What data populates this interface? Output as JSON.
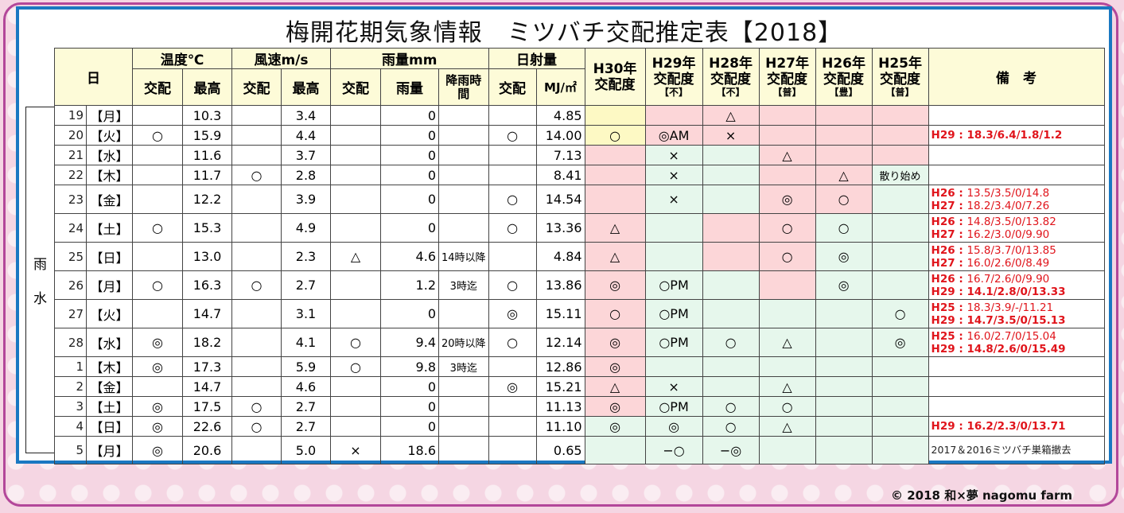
{
  "title": "梅開花期気象情報　ミツバチ交配推定表【2018】",
  "footer": "© 2018  和×夢 nagomu  farm",
  "side_label": [
    "雨",
    "水"
  ],
  "header": {
    "day": "日",
    "temp": "温度℃",
    "wind": "風速m/s",
    "rain": "雨量mm",
    "sun": "日射量",
    "mating": "交配",
    "max": "最高",
    "rain_amount": "雨量",
    "rain_time": "降雨時間",
    "mj": "MJ/㎡",
    "years": [
      {
        "label": "H30年",
        "sub": "交配度",
        "note": ""
      },
      {
        "label": "H29年",
        "sub": "交配度",
        "note": "【不】"
      },
      {
        "label": "H28年",
        "sub": "交配度",
        "note": "【不】"
      },
      {
        "label": "H27年",
        "sub": "交配度",
        "note": "【普】"
      },
      {
        "label": "H26年",
        "sub": "交配度",
        "note": "【豊】"
      },
      {
        "label": "H25年",
        "sub": "交配度",
        "note": "【普】"
      }
    ],
    "remarks": "備　考"
  },
  "rows": [
    {
      "d": "19",
      "w": "【月】",
      "tm": "",
      "tx": "10.3",
      "wm": "",
      "wx": "3.4",
      "rm": "",
      "ra": "0",
      "rt": "",
      "sm": "",
      "mj": "4.85",
      "y": [
        "",
        "",
        "△",
        "",
        "",
        ""
      ],
      "bg": [
        "yellow",
        "pink",
        "pink",
        "pink",
        "pink",
        "pink"
      ],
      "rem": []
    },
    {
      "d": "20",
      "w": "【火】",
      "tm": "○",
      "tx": "15.9",
      "wm": "",
      "wx": "4.4",
      "rm": "",
      "ra": "0",
      "rt": "",
      "sm": "○",
      "mj": "14.00",
      "y": [
        "○",
        "◎AM",
        "×",
        "",
        "",
        ""
      ],
      "bg": [
        "yellow",
        "pink",
        "pink",
        "pink",
        "pink",
        "pink"
      ],
      "rem": [
        {
          "p": "H29 : ",
          "v": "18.3/6.4/1.8/1.2",
          "bold": true
        }
      ]
    },
    {
      "d": "21",
      "w": "【水】",
      "tm": "",
      "tx": "11.6",
      "wm": "",
      "wx": "3.7",
      "rm": "",
      "ra": "0",
      "rt": "",
      "sm": "",
      "mj": "7.13",
      "y": [
        "",
        "×",
        "",
        "△",
        "",
        ""
      ],
      "bg": [
        "pink",
        "green",
        "green",
        "pink",
        "pink",
        "pink"
      ],
      "rem": []
    },
    {
      "d": "22",
      "w": "【木】",
      "tm": "",
      "tx": "11.7",
      "wm": "○",
      "wx": "2.8",
      "rm": "",
      "ra": "0",
      "rt": "",
      "sm": "",
      "mj": "8.41",
      "y": [
        "",
        "×",
        "",
        "",
        "△",
        "散り始め"
      ],
      "bg": [
        "pink",
        "green",
        "green",
        "pink",
        "pink",
        "green"
      ],
      "rem": []
    },
    {
      "d": "23",
      "w": "【金】",
      "tm": "",
      "tx": "12.2",
      "wm": "",
      "wx": "3.9",
      "rm": "",
      "ra": "0",
      "rt": "",
      "sm": "○",
      "mj": "14.54",
      "y": [
        "",
        "×",
        "",
        "◎",
        "○",
        ""
      ],
      "bg": [
        "pink",
        "green",
        "green",
        "pink",
        "pink",
        "green"
      ],
      "rem": [
        {
          "p": "H26 : ",
          "v": "13.5/3.5/0/14.8",
          "bold": false
        },
        {
          "p": "H27 : ",
          "v": "18.2/3.4/0/7.26",
          "bold": false
        }
      ]
    },
    {
      "d": "24",
      "w": "【土】",
      "tm": "○",
      "tx": "15.3",
      "wm": "",
      "wx": "4.9",
      "rm": "",
      "ra": "0",
      "rt": "",
      "sm": "○",
      "mj": "13.36",
      "y": [
        "△",
        "",
        "",
        "○",
        "○",
        ""
      ],
      "bg": [
        "pink",
        "green",
        "pink",
        "pink",
        "green",
        "green"
      ],
      "rem": [
        {
          "p": "H26 : ",
          "v": "14.8/3.5/0/13.82",
          "bold": false
        },
        {
          "p": "H27 : ",
          "v": "16.2/3.0/0/9.90",
          "bold": false
        }
      ]
    },
    {
      "d": "25",
      "w": "【日】",
      "tm": "",
      "tx": "13.0",
      "wm": "",
      "wx": "2.3",
      "rm": "△",
      "ra": "4.6",
      "rt": "14時以降",
      "sm": "",
      "mj": "4.84",
      "y": [
        "△",
        "",
        "",
        "○",
        "◎",
        ""
      ],
      "bg": [
        "pink",
        "green",
        "pink",
        "pink",
        "green",
        "green"
      ],
      "rem": [
        {
          "p": "H26 : ",
          "v": "15.8/3.7/0/13.85",
          "bold": false
        },
        {
          "p": "H27 : ",
          "v": "16.0/2.6/0/8.49",
          "bold": false
        }
      ]
    },
    {
      "d": "26",
      "w": "【月】",
      "tm": "○",
      "tx": "16.3",
      "wm": "○",
      "wx": "2.7",
      "rm": "",
      "ra": "1.2",
      "rt": "3時迄",
      "sm": "○",
      "mj": "13.86",
      "y": [
        "◎",
        "○PM",
        "",
        "",
        "◎",
        ""
      ],
      "bg": [
        "pink",
        "green",
        "green",
        "pink",
        "green",
        "green"
      ],
      "rem": [
        {
          "p": "H26 : ",
          "v": "16.7/2.6/0/9.90",
          "bold": false
        },
        {
          "p": "H29 : ",
          "v": "14.1/2.8/0/13.33",
          "bold": true
        }
      ]
    },
    {
      "d": "27",
      "w": "【火】",
      "tm": "",
      "tx": "14.7",
      "wm": "",
      "wx": "3.1",
      "rm": "",
      "ra": "0",
      "rt": "",
      "sm": "◎",
      "mj": "15.11",
      "y": [
        "○",
        "○PM",
        "",
        "",
        "",
        "○"
      ],
      "bg": [
        "pink",
        "green",
        "green",
        "green",
        "green",
        "green"
      ],
      "rem": [
        {
          "p": "H25 : ",
          "v": "18.3/3.9/-/11.21",
          "bold": false
        },
        {
          "p": "H29 : ",
          "v": "14.7/3.5/0/15.13",
          "bold": true
        }
      ]
    },
    {
      "d": "28",
      "w": "【水】",
      "tm": "◎",
      "tx": "18.2",
      "wm": "",
      "wx": "4.1",
      "rm": "○",
      "ra": "9.4",
      "rt": "20時以降",
      "sm": "○",
      "mj": "12.14",
      "y": [
        "◎",
        "○PM",
        "○",
        "△",
        "",
        "◎"
      ],
      "bg": [
        "pink",
        "green",
        "green",
        "green",
        "green",
        "green"
      ],
      "rem": [
        {
          "p": "H25 : ",
          "v": "16.0/2.7/0/15.04",
          "bold": false
        },
        {
          "p": "H29 : ",
          "v": "14.8/2.6/0/15.49",
          "bold": true
        }
      ]
    },
    {
      "d": "1",
      "w": "【木】",
      "tm": "◎",
      "tx": "17.3",
      "wm": "",
      "wx": "5.9",
      "rm": "○",
      "ra": "9.8",
      "rt": "3時迄",
      "sm": "",
      "mj": "12.86",
      "y": [
        "◎",
        "",
        "",
        "",
        "",
        ""
      ],
      "bg": [
        "pink",
        "green",
        "green",
        "green",
        "green",
        "green"
      ],
      "rem": []
    },
    {
      "d": "2",
      "w": "【金】",
      "tm": "",
      "tx": "14.7",
      "wm": "",
      "wx": "4.6",
      "rm": "",
      "ra": "0",
      "rt": "",
      "sm": "◎",
      "mj": "15.21",
      "y": [
        "△",
        "×",
        "",
        "△",
        "",
        ""
      ],
      "bg": [
        "pink",
        "green",
        "green",
        "green",
        "green",
        "green"
      ],
      "rem": []
    },
    {
      "d": "3",
      "w": "【土】",
      "tm": "◎",
      "tx": "17.5",
      "wm": "○",
      "wx": "2.7",
      "rm": "",
      "ra": "0",
      "rt": "",
      "sm": "",
      "mj": "11.13",
      "y": [
        "◎",
        "○PM",
        "○",
        "○",
        "",
        ""
      ],
      "bg": [
        "pink",
        "green",
        "green",
        "green",
        "green",
        "green"
      ],
      "rem": []
    },
    {
      "d": "4",
      "w": "【日】",
      "tm": "◎",
      "tx": "22.6",
      "wm": "○",
      "wx": "2.7",
      "rm": "",
      "ra": "0",
      "rt": "",
      "sm": "",
      "mj": "11.10",
      "y": [
        "◎",
        "◎",
        "○",
        "△",
        "",
        ""
      ],
      "bg": [
        "green",
        "green",
        "green",
        "green",
        "green",
        "green"
      ],
      "rem": [
        {
          "p": "H29 : ",
          "v": "16.2/2.3/0/13.71",
          "bold": true
        }
      ]
    },
    {
      "d": "5",
      "w": "【月】",
      "tm": "◎",
      "tx": "20.6",
      "wm": "",
      "wx": "5.0",
      "rm": "×",
      "ra": "18.6",
      "rt": "",
      "sm": "",
      "mj": "0.65",
      "y": [
        "",
        "−○",
        "−◎",
        "",
        "",
        ""
      ],
      "bg": [
        "green",
        "green",
        "green",
        "green",
        "green",
        "green"
      ],
      "rem": [
        {
          "p": "",
          "v": "2017＆2016ミツバチ巣箱撤去",
          "bold": false,
          "black": true
        }
      ]
    }
  ]
}
